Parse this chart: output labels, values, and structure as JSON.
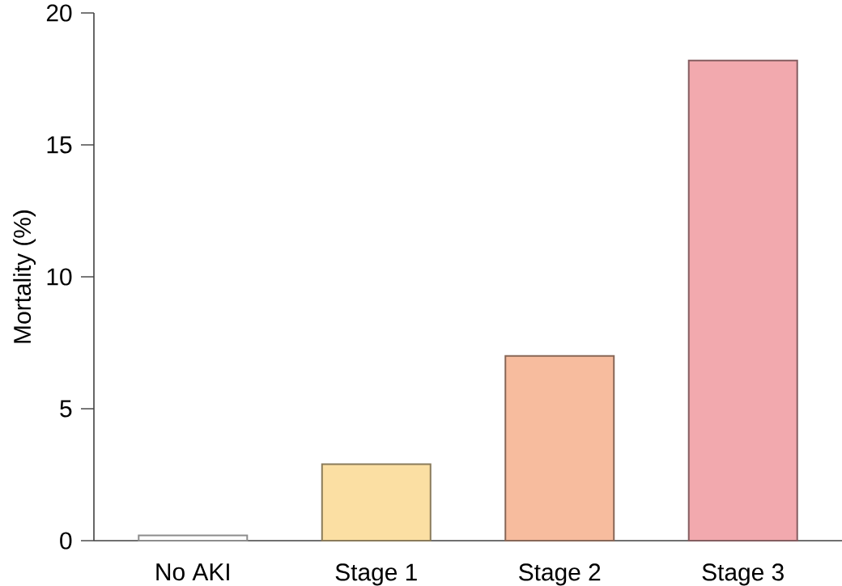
{
  "chart_data": {
    "type": "bar",
    "ylabel": "Mortality (%)",
    "categories": [
      "No AKI",
      "Stage 1",
      "Stage 2",
      "Stage 3"
    ],
    "values": [
      0.2,
      2.9,
      7.0,
      18.2
    ],
    "colors": [
      "#ffffff",
      "#fbdfa3",
      "#f7bc9e",
      "#f2a9ae"
    ],
    "ylim": [
      0,
      20
    ],
    "yticks": [
      0,
      5,
      10,
      15,
      20
    ]
  }
}
